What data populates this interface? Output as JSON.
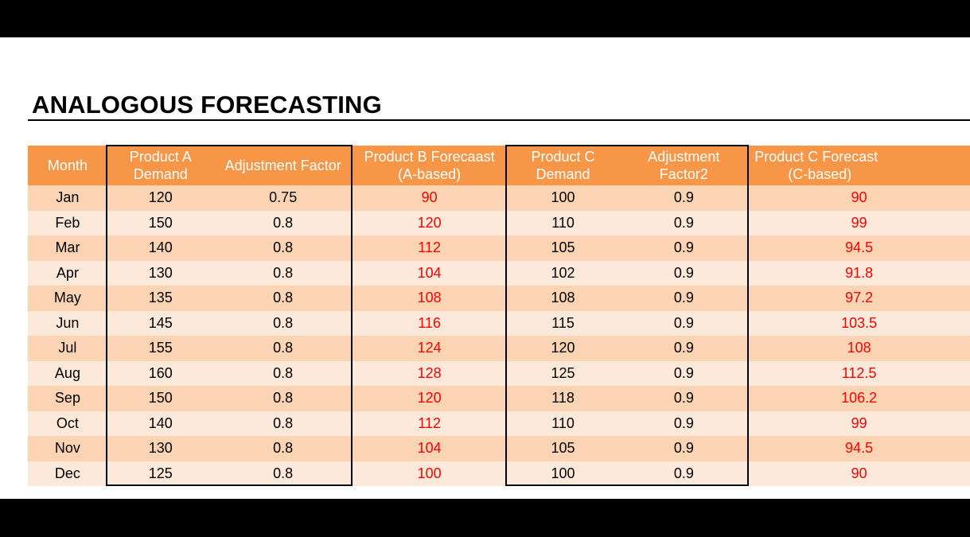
{
  "title": "ANALOGOUS FORECASTING",
  "headers": {
    "month": "Month",
    "product_a_line1": "Product A",
    "product_a_line2": "Demand",
    "adj_factor": "Adjustment Factor",
    "product_b_line1": "Product B Forecaast",
    "product_b_line2": "(A-based)",
    "product_c_line1": "Product C",
    "product_c_line2": "Demand",
    "adj_factor2_line1": "Adjustment",
    "adj_factor2_line2": "Factor2",
    "product_c_fc_line1": "Product C Forecast",
    "product_c_fc_line2": "(C-based)"
  },
  "rows": [
    {
      "month": "Jan",
      "a_demand": "120",
      "adj": "0.75",
      "b_forecast": "90",
      "c_demand": "100",
      "adj2": "0.9",
      "c_forecast": "90"
    },
    {
      "month": "Feb",
      "a_demand": "150",
      "adj": "0.8",
      "b_forecast": "120",
      "c_demand": "110",
      "adj2": "0.9",
      "c_forecast": "99"
    },
    {
      "month": "Mar",
      "a_demand": "140",
      "adj": "0.8",
      "b_forecast": "112",
      "c_demand": "105",
      "adj2": "0.9",
      "c_forecast": "94.5"
    },
    {
      "month": "Apr",
      "a_demand": "130",
      "adj": "0.8",
      "b_forecast": "104",
      "c_demand": "102",
      "adj2": "0.9",
      "c_forecast": "91.8"
    },
    {
      "month": "May",
      "a_demand": "135",
      "adj": "0.8",
      "b_forecast": "108",
      "c_demand": "108",
      "adj2": "0.9",
      "c_forecast": "97.2"
    },
    {
      "month": "Jun",
      "a_demand": "145",
      "adj": "0.8",
      "b_forecast": "116",
      "c_demand": "115",
      "adj2": "0.9",
      "c_forecast": "103.5"
    },
    {
      "month": "Jul",
      "a_demand": "155",
      "adj": "0.8",
      "b_forecast": "124",
      "c_demand": "120",
      "adj2": "0.9",
      "c_forecast": "108"
    },
    {
      "month": "Aug",
      "a_demand": "160",
      "adj": "0.8",
      "b_forecast": "128",
      "c_demand": "125",
      "adj2": "0.9",
      "c_forecast": "112.5"
    },
    {
      "month": "Sep",
      "a_demand": "150",
      "adj": "0.8",
      "b_forecast": "120",
      "c_demand": "118",
      "adj2": "0.9",
      "c_forecast": "106.2"
    },
    {
      "month": "Oct",
      "a_demand": "140",
      "adj": "0.8",
      "b_forecast": "112",
      "c_demand": "110",
      "adj2": "0.9",
      "c_forecast": "99"
    },
    {
      "month": "Nov",
      "a_demand": "130",
      "adj": "0.8",
      "b_forecast": "104",
      "c_demand": "105",
      "adj2": "0.9",
      "c_forecast": "94.5"
    },
    {
      "month": "Dec",
      "a_demand": "125",
      "adj": "0.8",
      "b_forecast": "100",
      "c_demand": "100",
      "adj2": "0.9",
      "c_forecast": "90"
    }
  ],
  "colors": {
    "header_bg": "#f79646",
    "row_odd": "#fbd4b4",
    "row_even": "#fde9d9",
    "forecast_text": "#ff0000"
  }
}
